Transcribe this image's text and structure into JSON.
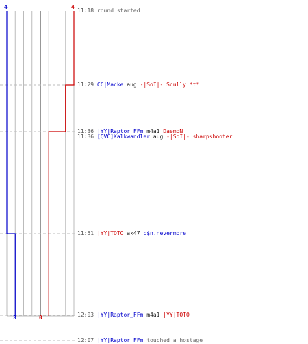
{
  "scores": {
    "blue_start": "4",
    "red_start": "4",
    "blue_end": "3",
    "red_end": "0"
  },
  "colors": {
    "blue_team": "#0000cc",
    "red_team": "#cc0000",
    "grid": "#bbbbbb",
    "event_line": "#bbbbbb",
    "center_line": "#777777"
  },
  "events": [
    {
      "time": "11:18",
      "text": "round started"
    },
    {
      "time": "11:29",
      "killer": "CC|Macke",
      "killer_team": "blue",
      "weapon": "aug",
      "victim": "-|SoI|- Scully *t*",
      "victim_team": "red"
    },
    {
      "time": "11:36",
      "killer": "|YY|Raptor_FFm",
      "killer_team": "blue",
      "weapon": "m4a1",
      "victim": "DaemoN",
      "victim_team": "red"
    },
    {
      "time": "11:36",
      "killer": "[QVC]Kalkwandler",
      "killer_team": "blue",
      "weapon": "aug",
      "victim": "-|SoI|- sharpshooter",
      "victim_team": "red"
    },
    {
      "time": "11:51",
      "killer": "|YY|TOTO",
      "killer_team": "red",
      "weapon": "ak47",
      "victim": "c$n.nevermore",
      "victim_team": "blue"
    },
    {
      "time": "12:03",
      "killer": "|YY|Raptor_FFm",
      "killer_team": "blue",
      "weapon": "m4a1",
      "victim": "|YY|TOTO",
      "victim_team": "red"
    },
    {
      "time": "12:07",
      "killer": "|YY|Raptor_FFm",
      "killer_team": "blue",
      "text": "touched a hostage"
    }
  ]
}
